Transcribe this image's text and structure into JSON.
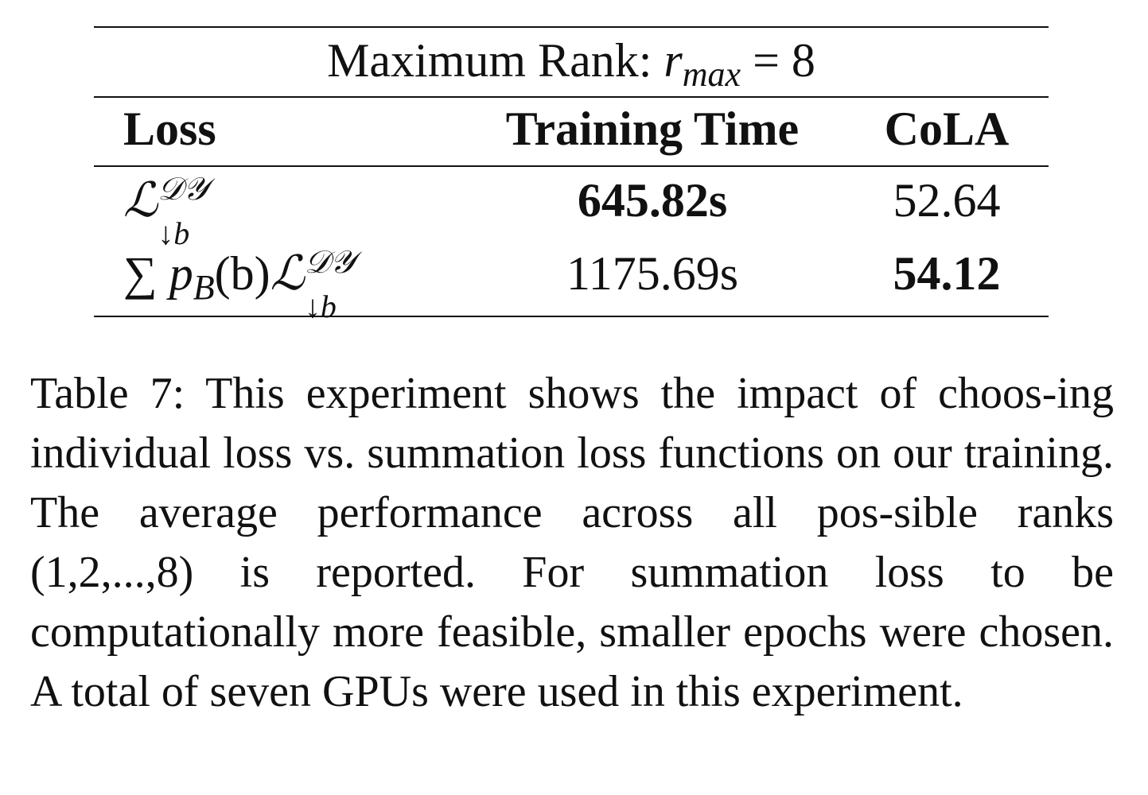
{
  "table": {
    "title_text": "Maximum Rank: ",
    "title_math": "r",
    "title_math_sub": "max",
    "title_math_rest": " = 8",
    "headers": [
      "Loss",
      "Training Time",
      "CoLA"
    ],
    "rows": [
      {
        "loss_symbol": "ℒ",
        "loss_sup": "𝒟𝒴",
        "loss_sub": "↓b",
        "training_time": "645.82s",
        "cola": "52.64",
        "bold_col": "training_time"
      },
      {
        "loss_prefix": "∑ p",
        "loss_prefix_sub": "B",
        "loss_prefix_rest": "(b)",
        "loss_symbol": "ℒ",
        "loss_sup": "𝒟𝒴",
        "loss_sub": "↓b",
        "training_time": "1175.69s",
        "cola": "54.12",
        "bold_col": "cola"
      }
    ]
  },
  "caption": "Table 7: This experiment shows the impact of choos-ing individual loss vs. summation loss functions on our training. The average performance across all pos-sible ranks (1,2,...,8) is reported. For summation loss to be computationally more feasible, smaller epochs were chosen. A total of seven GPUs were used in this experiment."
}
